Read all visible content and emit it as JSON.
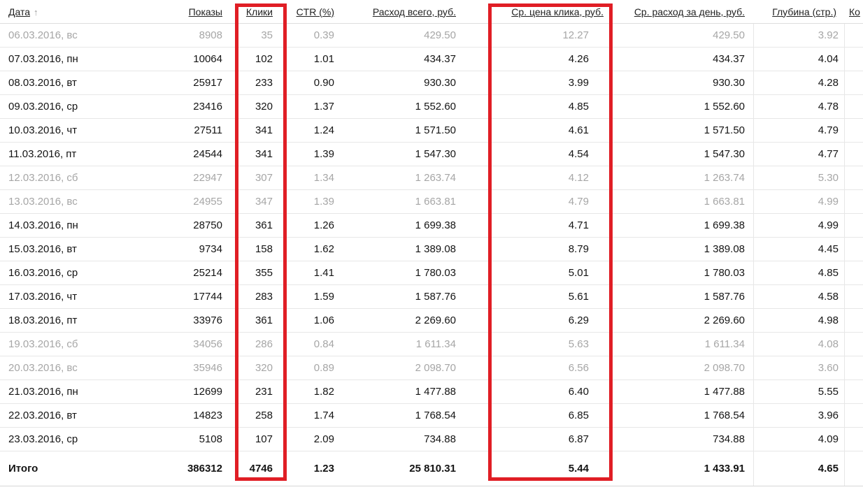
{
  "table": {
    "sort_arrow": "↑",
    "columns": [
      {
        "key": "date",
        "label": "Дата",
        "sorted": true
      },
      {
        "key": "impressions",
        "label": "Показы"
      },
      {
        "key": "clicks",
        "label": "Клики",
        "highlighted": true
      },
      {
        "key": "ctr",
        "label": "CTR (%)"
      },
      {
        "key": "cost_total",
        "label": "Расход всего, руб."
      },
      {
        "key": "avg_cpc",
        "label": "Ср. цена клика, руб.",
        "highlighted": true
      },
      {
        "key": "avg_cost_per_day",
        "label": "Ср. расход за день, руб."
      },
      {
        "key": "depth",
        "label": "Глубина (стр.)"
      },
      {
        "key": "truncated",
        "label": "Ко"
      }
    ],
    "rows": [
      {
        "date": "06.03.2016, вс",
        "impressions": "8908",
        "clicks": "35",
        "ctr": "0.39",
        "cost_total": "429.50",
        "avg_cpc": "12.27",
        "avg_cost_per_day": "429.50",
        "depth": "3.92",
        "weekend": true
      },
      {
        "date": "07.03.2016, пн",
        "impressions": "10064",
        "clicks": "102",
        "ctr": "1.01",
        "cost_total": "434.37",
        "avg_cpc": "4.26",
        "avg_cost_per_day": "434.37",
        "depth": "4.04",
        "weekend": false
      },
      {
        "date": "08.03.2016, вт",
        "impressions": "25917",
        "clicks": "233",
        "ctr": "0.90",
        "cost_total": "930.30",
        "avg_cpc": "3.99",
        "avg_cost_per_day": "930.30",
        "depth": "4.28",
        "weekend": false
      },
      {
        "date": "09.03.2016, ср",
        "impressions": "23416",
        "clicks": "320",
        "ctr": "1.37",
        "cost_total": "1 552.60",
        "avg_cpc": "4.85",
        "avg_cost_per_day": "1 552.60",
        "depth": "4.78",
        "weekend": false
      },
      {
        "date": "10.03.2016, чт",
        "impressions": "27511",
        "clicks": "341",
        "ctr": "1.24",
        "cost_total": "1 571.50",
        "avg_cpc": "4.61",
        "avg_cost_per_day": "1 571.50",
        "depth": "4.79",
        "weekend": false
      },
      {
        "date": "11.03.2016, пт",
        "impressions": "24544",
        "clicks": "341",
        "ctr": "1.39",
        "cost_total": "1 547.30",
        "avg_cpc": "4.54",
        "avg_cost_per_day": "1 547.30",
        "depth": "4.77",
        "weekend": false
      },
      {
        "date": "12.03.2016, сб",
        "impressions": "22947",
        "clicks": "307",
        "ctr": "1.34",
        "cost_total": "1 263.74",
        "avg_cpc": "4.12",
        "avg_cost_per_day": "1 263.74",
        "depth": "5.30",
        "weekend": true
      },
      {
        "date": "13.03.2016, вс",
        "impressions": "24955",
        "clicks": "347",
        "ctr": "1.39",
        "cost_total": "1 663.81",
        "avg_cpc": "4.79",
        "avg_cost_per_day": "1 663.81",
        "depth": "4.99",
        "weekend": true
      },
      {
        "date": "14.03.2016, пн",
        "impressions": "28750",
        "clicks": "361",
        "ctr": "1.26",
        "cost_total": "1 699.38",
        "avg_cpc": "4.71",
        "avg_cost_per_day": "1 699.38",
        "depth": "4.99",
        "weekend": false
      },
      {
        "date": "15.03.2016, вт",
        "impressions": "9734",
        "clicks": "158",
        "ctr": "1.62",
        "cost_total": "1 389.08",
        "avg_cpc": "8.79",
        "avg_cost_per_day": "1 389.08",
        "depth": "4.45",
        "weekend": false
      },
      {
        "date": "16.03.2016, ср",
        "impressions": "25214",
        "clicks": "355",
        "ctr": "1.41",
        "cost_total": "1 780.03",
        "avg_cpc": "5.01",
        "avg_cost_per_day": "1 780.03",
        "depth": "4.85",
        "weekend": false
      },
      {
        "date": "17.03.2016, чт",
        "impressions": "17744",
        "clicks": "283",
        "ctr": "1.59",
        "cost_total": "1 587.76",
        "avg_cpc": "5.61",
        "avg_cost_per_day": "1 587.76",
        "depth": "4.58",
        "weekend": false
      },
      {
        "date": "18.03.2016, пт",
        "impressions": "33976",
        "clicks": "361",
        "ctr": "1.06",
        "cost_total": "2 269.60",
        "avg_cpc": "6.29",
        "avg_cost_per_day": "2 269.60",
        "depth": "4.98",
        "weekend": false
      },
      {
        "date": "19.03.2016, сб",
        "impressions": "34056",
        "clicks": "286",
        "ctr": "0.84",
        "cost_total": "1 611.34",
        "avg_cpc": "5.63",
        "avg_cost_per_day": "1 611.34",
        "depth": "4.08",
        "weekend": true
      },
      {
        "date": "20.03.2016, вс",
        "impressions": "35946",
        "clicks": "320",
        "ctr": "0.89",
        "cost_total": "2 098.70",
        "avg_cpc": "6.56",
        "avg_cost_per_day": "2 098.70",
        "depth": "3.60",
        "weekend": true
      },
      {
        "date": "21.03.2016, пн",
        "impressions": "12699",
        "clicks": "231",
        "ctr": "1.82",
        "cost_total": "1 477.88",
        "avg_cpc": "6.40",
        "avg_cost_per_day": "1 477.88",
        "depth": "5.55",
        "weekend": false
      },
      {
        "date": "22.03.2016, вт",
        "impressions": "14823",
        "clicks": "258",
        "ctr": "1.74",
        "cost_total": "1 768.54",
        "avg_cpc": "6.85",
        "avg_cost_per_day": "1 768.54",
        "depth": "3.96",
        "weekend": false
      },
      {
        "date": "23.03.2016, ср",
        "impressions": "5108",
        "clicks": "107",
        "ctr": "2.09",
        "cost_total": "734.88",
        "avg_cpc": "6.87",
        "avg_cost_per_day": "734.88",
        "depth": "4.09",
        "weekend": false
      }
    ],
    "totals": {
      "label": "Итого",
      "impressions": "386312",
      "clicks": "4746",
      "ctr": "1.23",
      "cost_total": "25 810.31",
      "avg_cpc": "5.44",
      "avg_cost_per_day": "1 433.91",
      "depth": "4.65"
    }
  },
  "annotations": {
    "highlight_color": "#e01e25",
    "boxes": [
      "clicks-column",
      "avg-cpc-column"
    ]
  }
}
